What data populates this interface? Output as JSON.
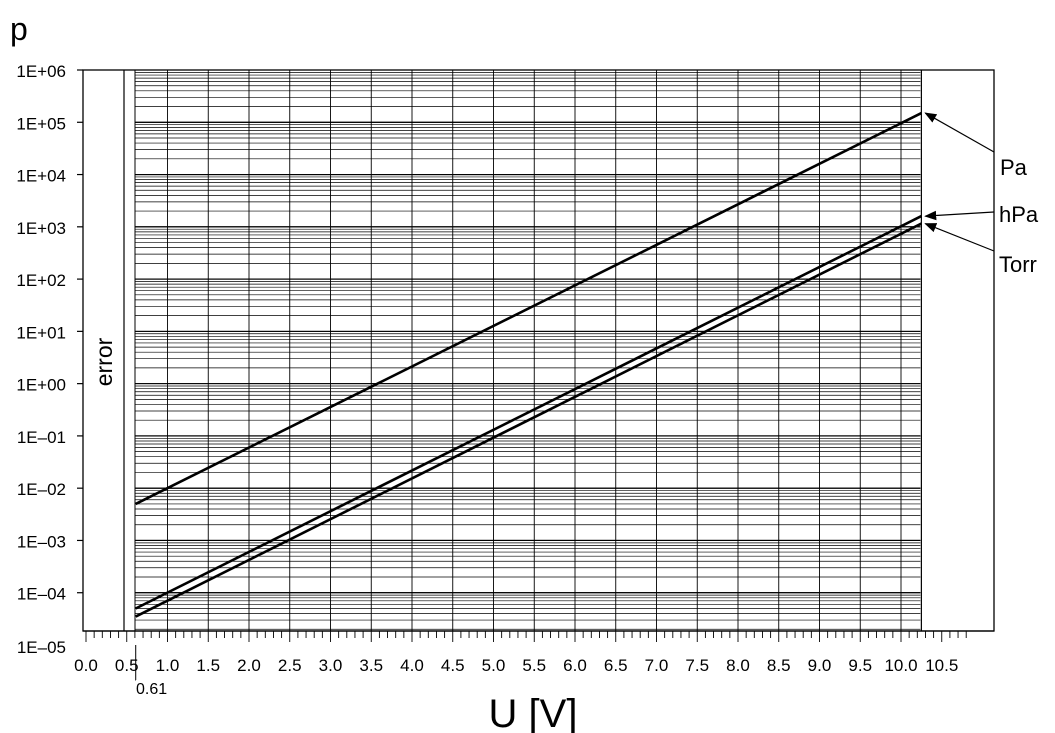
{
  "chart_data": {
    "type": "line",
    "ylabel": "p",
    "xlabel": "U [V]",
    "yscale": "log",
    "xlim": [
      0.0,
      10.8
    ],
    "ylim": [
      1e-05,
      1000000.0
    ],
    "valid_range": [
      0.61,
      10.25
    ],
    "error_zone_label": "error",
    "threshold_label": "0.61",
    "x_ticks": [
      "0.0",
      "0.5",
      "1.0",
      "1.5",
      "2.0",
      "2.5",
      "3.0",
      "3.5",
      "4.0",
      "4.5",
      "5.0",
      "5.5",
      "6.0",
      "6.5",
      "7.0",
      "7.5",
      "8.0",
      "8.5",
      "9.0",
      "9.5",
      "10.0",
      "10.5"
    ],
    "y_ticks": [
      "1E+06",
      "1E+05",
      "1E+04",
      "1E+03",
      "1E+02",
      "1E+01",
      "1E+00",
      "1E–01",
      "1E–02",
      "1E–03",
      "1E–04",
      "1E–05"
    ],
    "grid": true,
    "series": [
      {
        "name": "Pa",
        "x": [
          0.61,
          10.25
        ],
        "y": [
          0.005,
          150000
        ]
      },
      {
        "name": "hPa",
        "x": [
          0.61,
          10.25
        ],
        "y": [
          5e-05,
          1600
        ]
      },
      {
        "name": "Torr",
        "x": [
          0.61,
          10.25
        ],
        "y": [
          3.5e-05,
          1150
        ]
      }
    ]
  }
}
